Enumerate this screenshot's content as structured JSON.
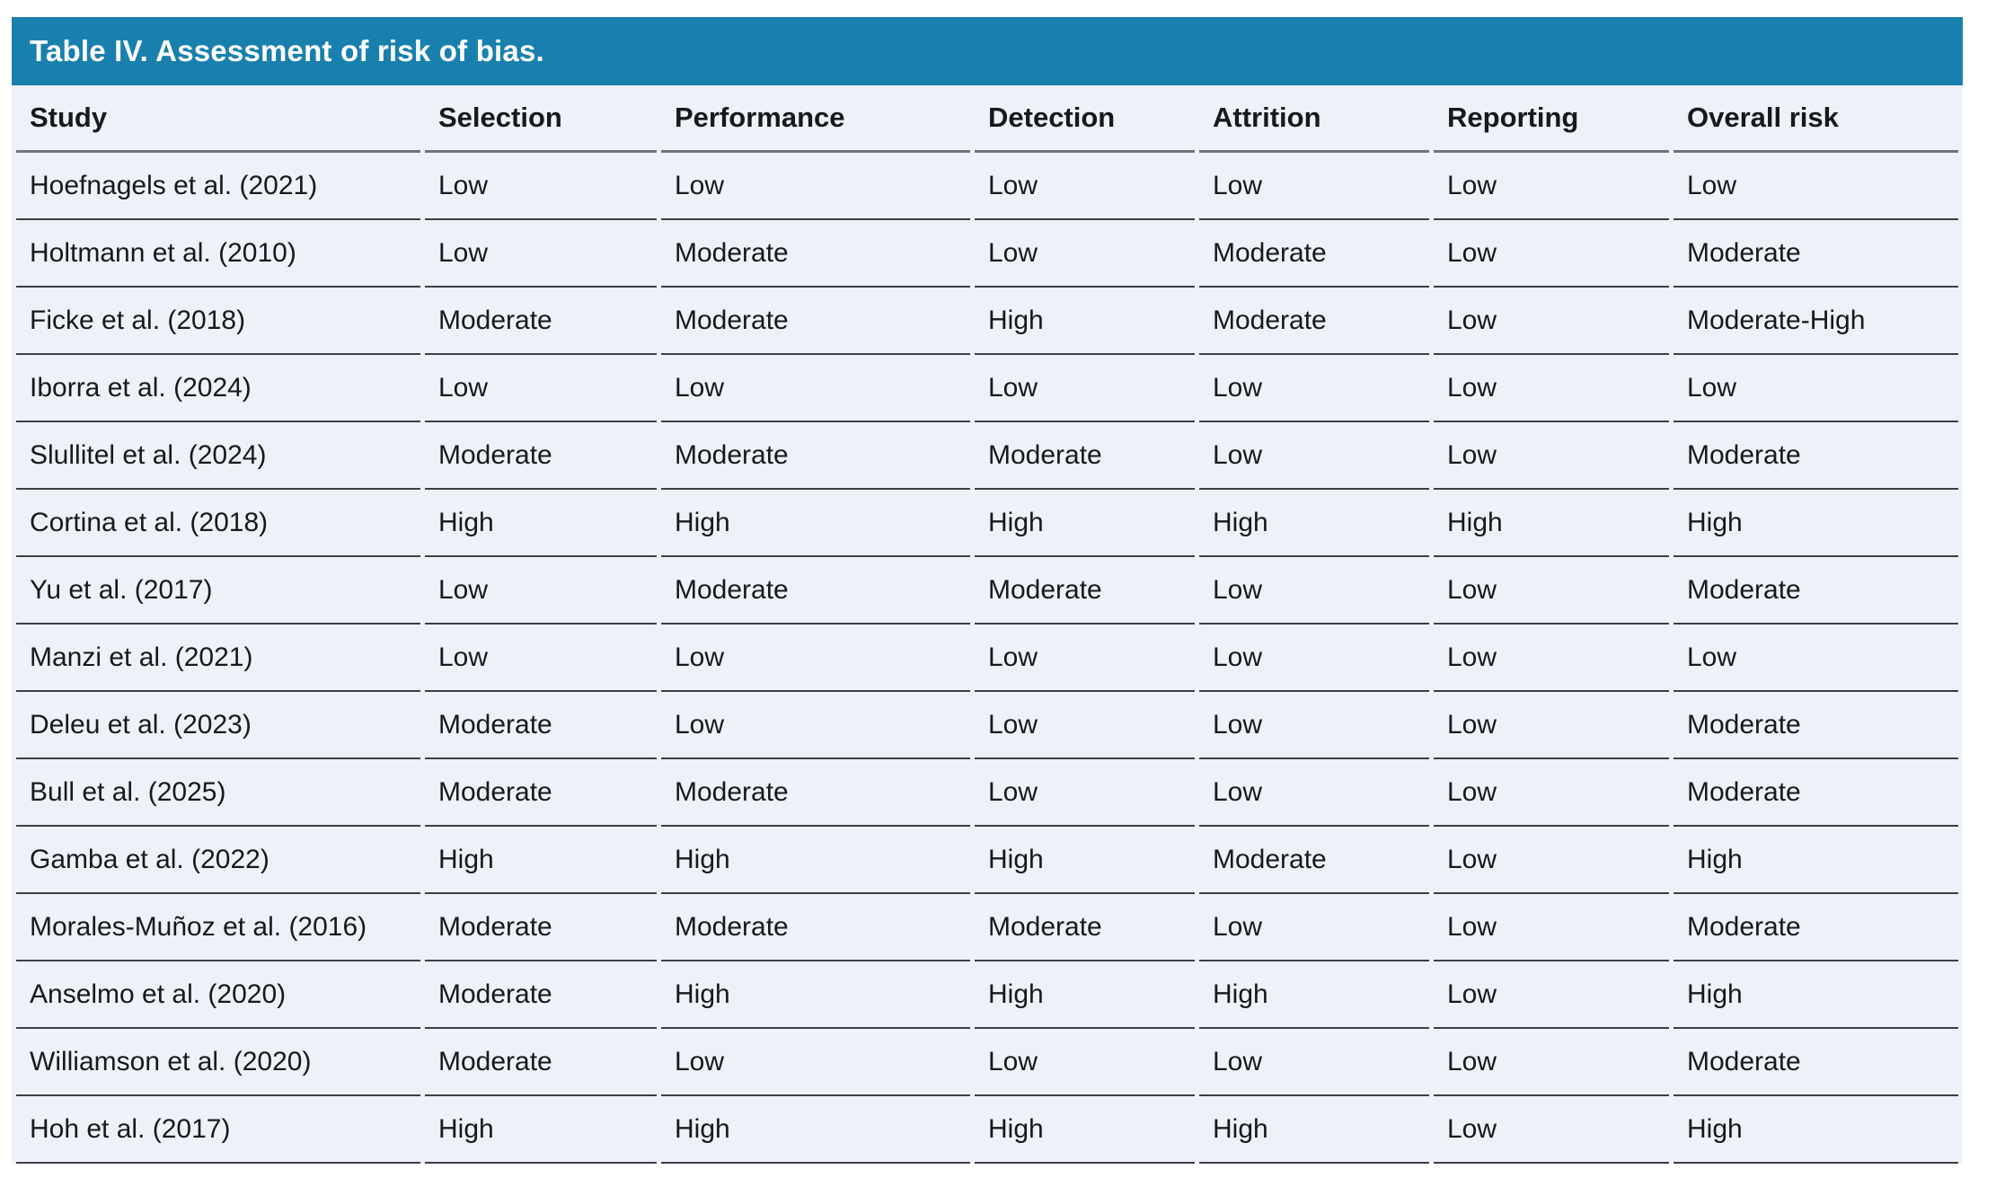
{
  "table": {
    "title": "Table IV. Assessment of risk of bias.",
    "columns": [
      "Study",
      "Selection",
      "Performance",
      "Detection",
      "Attrition",
      "Reporting",
      "Overall risk"
    ],
    "rows": [
      {
        "study": "Hoefnagels et al. (2021)",
        "selection": "Low",
        "performance": "Low",
        "detection": "Low",
        "attrition": "Low",
        "reporting": "Low",
        "overall": "Low"
      },
      {
        "study": "Holtmann et al. (2010)",
        "selection": "Low",
        "performance": "Moderate",
        "detection": "Low",
        "attrition": "Moderate",
        "reporting": "Low",
        "overall": "Moderate"
      },
      {
        "study": "Ficke et al. (2018)",
        "selection": "Moderate",
        "performance": "Moderate",
        "detection": "High",
        "attrition": "Moderate",
        "reporting": "Low",
        "overall": "Moderate-High"
      },
      {
        "study": "Iborra et al. (2024)",
        "selection": "Low",
        "performance": "Low",
        "detection": "Low",
        "attrition": "Low",
        "reporting": "Low",
        "overall": "Low"
      },
      {
        "study": "Slullitel et al. (2024)",
        "selection": "Moderate",
        "performance": "Moderate",
        "detection": "Moderate",
        "attrition": "Low",
        "reporting": "Low",
        "overall": "Moderate"
      },
      {
        "study": "Cortina et al. (2018)",
        "selection": "High",
        "performance": "High",
        "detection": "High",
        "attrition": "High",
        "reporting": "High",
        "overall": "High"
      },
      {
        "study": "Yu et al. (2017)",
        "selection": "Low",
        "performance": "Moderate",
        "detection": "Moderate",
        "attrition": "Low",
        "reporting": "Low",
        "overall": "Moderate"
      },
      {
        "study": "Manzi et al. (2021)",
        "selection": "Low",
        "performance": "Low",
        "detection": "Low",
        "attrition": "Low",
        "reporting": "Low",
        "overall": "Low"
      },
      {
        "study": "Deleu et al. (2023)",
        "selection": "Moderate",
        "performance": "Low",
        "detection": "Low",
        "attrition": "Low",
        "reporting": "Low",
        "overall": "Moderate"
      },
      {
        "study": "Bull et al. (2025)",
        "selection": "Moderate",
        "performance": "Moderate",
        "detection": "Low",
        "attrition": "Low",
        "reporting": "Low",
        "overall": "Moderate"
      },
      {
        "study": "Gamba et al. (2022)",
        "selection": "High",
        "performance": "High",
        "detection": "High",
        "attrition": "Moderate",
        "reporting": "Low",
        "overall": "High"
      },
      {
        "study": "Morales-Muñoz et al. (2016)",
        "selection": "Moderate",
        "performance": "Moderate",
        "detection": "Moderate",
        "attrition": "Low",
        "reporting": "Low",
        "overall": "Moderate"
      },
      {
        "study": "Anselmo et al. (2020)",
        "selection": "Moderate",
        "performance": "High",
        "detection": "High",
        "attrition": "High",
        "reporting": "Low",
        "overall": "High"
      },
      {
        "study": "Williamson et al. (2020)",
        "selection": "Moderate",
        "performance": "Low",
        "detection": "Low",
        "attrition": "Low",
        "reporting": "Low",
        "overall": "Moderate"
      },
      {
        "study": "Hoh et al. (2017)",
        "selection": "High",
        "performance": "High",
        "detection": "High",
        "attrition": "High",
        "reporting": "Low",
        "overall": "High"
      }
    ]
  },
  "colors": {
    "title_bar": "#1980ad",
    "table_bg": "#edf1f8",
    "header_border": "#70737c",
    "row_border": "#3d3f44",
    "title_text": "#ffffff",
    "body_text": "#17191c",
    "page_bg": "#ffffff"
  }
}
